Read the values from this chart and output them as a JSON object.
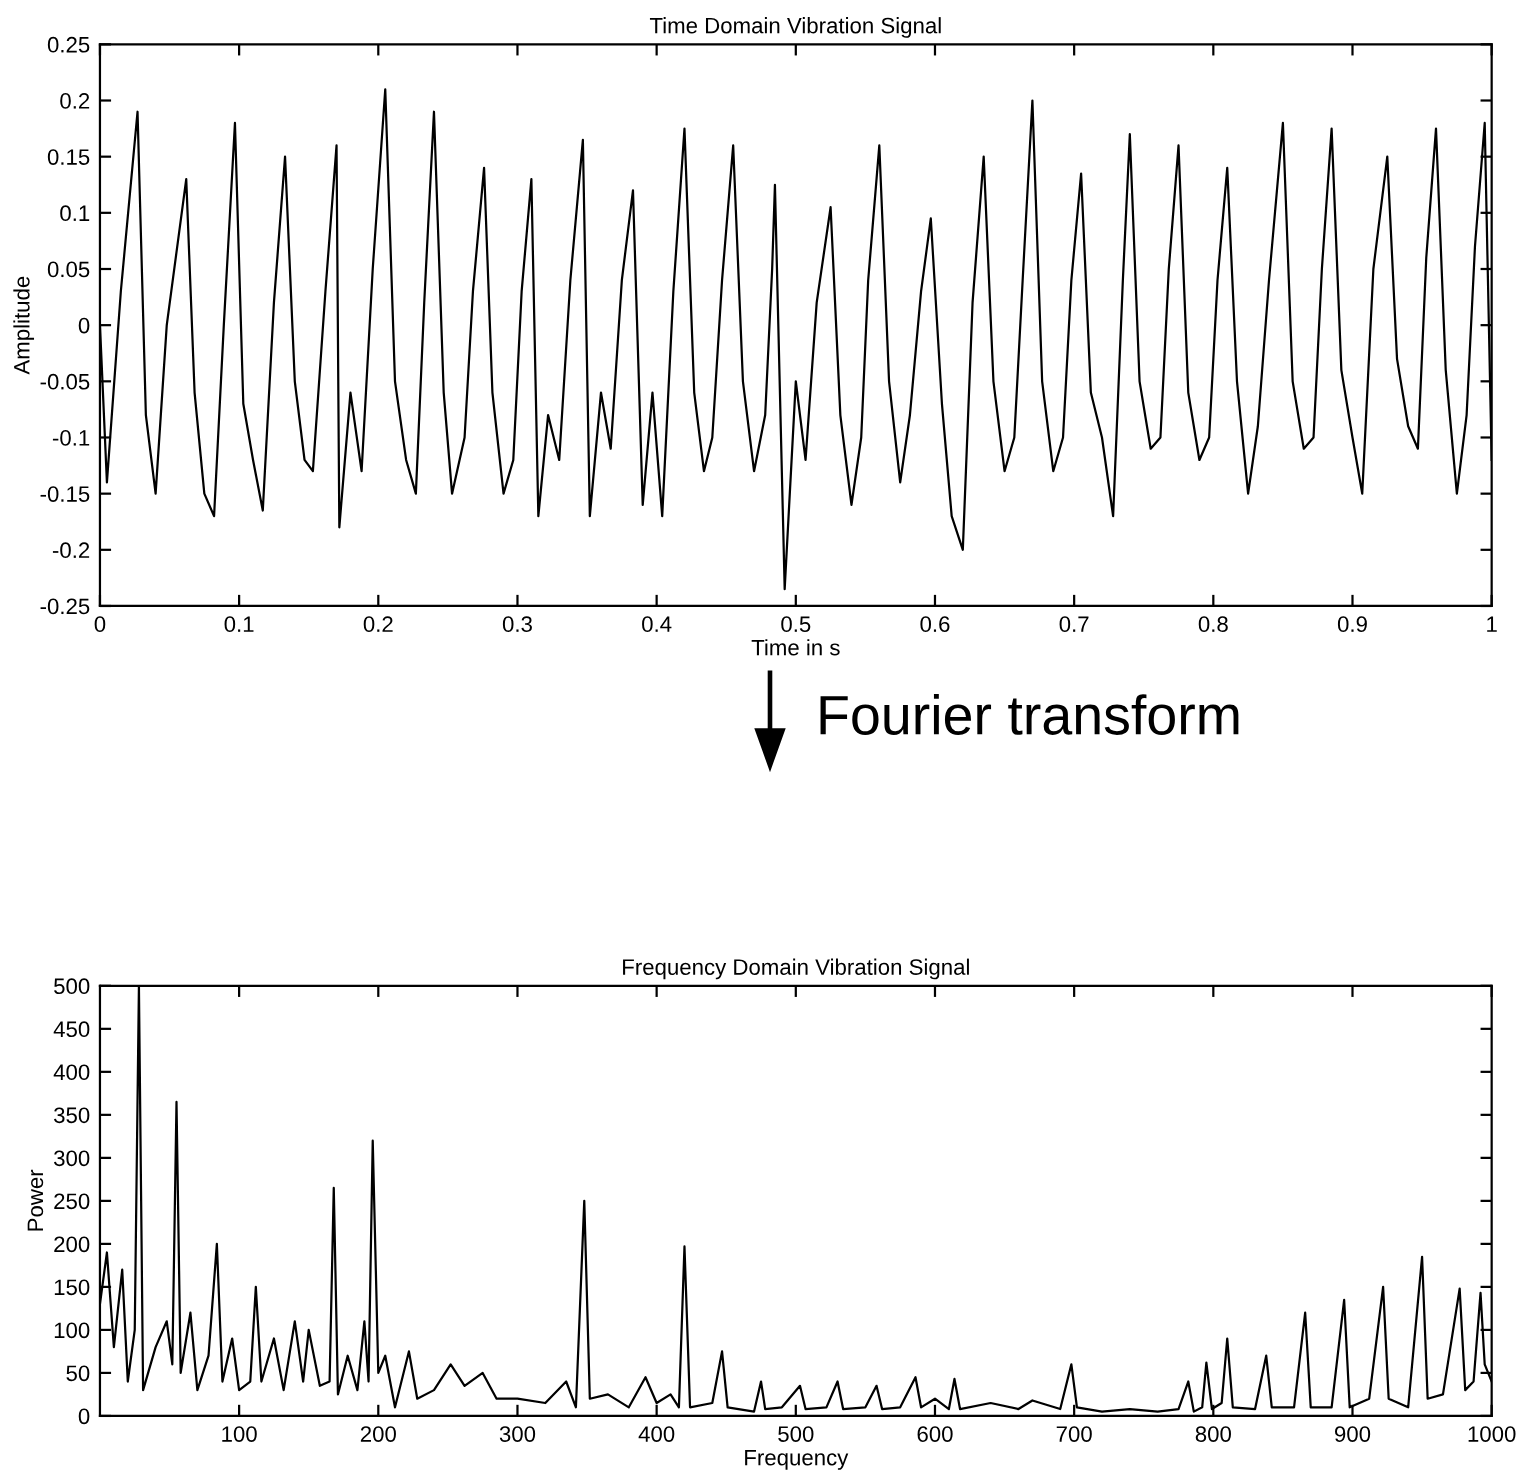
{
  "chart_data": [
    {
      "type": "line",
      "title": "Time Domain Vibration Signal",
      "xlabel": "Time in s",
      "ylabel": "Amplitude",
      "xlim": [
        0,
        1
      ],
      "ylim": [
        -0.25,
        0.25
      ],
      "xticks": [
        0,
        0.1,
        0.2,
        0.3,
        0.4,
        0.5,
        0.6,
        0.7,
        0.8,
        0.9,
        1
      ],
      "yticks": [
        -0.25,
        -0.2,
        -0.15,
        -0.1,
        -0.05,
        0,
        0.05,
        0.1,
        0.15,
        0.2,
        0.25
      ],
      "annotations": [
        "Fourier transform"
      ],
      "series": [
        {
          "color": "#000000",
          "x": [
            0,
            0.005,
            0.015,
            0.027,
            0.033,
            0.04,
            0.048,
            0.062,
            0.068,
            0.075,
            0.082,
            0.089,
            0.097,
            0.103,
            0.11,
            0.117,
            0.125,
            0.133,
            0.14,
            0.147,
            0.153,
            0.162,
            0.17,
            0.172,
            0.18,
            0.188,
            0.196,
            0.205,
            0.212,
            0.22,
            0.227,
            0.233,
            0.24,
            0.247,
            0.253,
            0.262,
            0.268,
            0.276,
            0.282,
            0.29,
            0.297,
            0.303,
            0.31,
            0.315,
            0.322,
            0.33,
            0.338,
            0.347,
            0.352,
            0.36,
            0.367,
            0.375,
            0.383,
            0.39,
            0.397,
            0.404,
            0.412,
            0.42,
            0.427,
            0.434,
            0.44,
            0.447,
            0.455,
            0.462,
            0.47,
            0.478,
            0.483,
            0.485,
            0.492,
            0.5,
            0.507,
            0.515,
            0.525,
            0.532,
            0.54,
            0.547,
            0.552,
            0.56,
            0.567,
            0.575,
            0.582,
            0.59,
            0.597,
            0.605,
            0.612,
            0.62,
            0.627,
            0.635,
            0.642,
            0.65,
            0.657,
            0.663,
            0.67,
            0.677,
            0.685,
            0.692,
            0.698,
            0.705,
            0.712,
            0.72,
            0.728,
            0.735,
            0.74,
            0.747,
            0.755,
            0.762,
            0.768,
            0.775,
            0.782,
            0.79,
            0.797,
            0.803,
            0.81,
            0.817,
            0.825,
            0.832,
            0.84,
            0.85,
            0.857,
            0.865,
            0.872,
            0.878,
            0.885,
            0.892,
            0.9,
            0.907,
            0.915,
            0.925,
            0.932,
            0.94,
            0.947,
            0.953,
            0.96,
            0.967,
            0.975,
            0.982,
            0.988,
            0.995,
            1.0
          ],
          "values": [
            0.0,
            -0.14,
            0.03,
            0.19,
            -0.08,
            -0.15,
            0.0,
            0.13,
            -0.06,
            -0.15,
            -0.17,
            0.0,
            0.18,
            -0.07,
            -0.12,
            -0.165,
            0.02,
            0.15,
            -0.05,
            -0.12,
            -0.13,
            0.03,
            0.16,
            -0.18,
            -0.06,
            -0.13,
            0.05,
            0.21,
            -0.05,
            -0.12,
            -0.15,
            0.02,
            0.19,
            -0.06,
            -0.15,
            -0.1,
            0.03,
            0.14,
            -0.06,
            -0.15,
            -0.12,
            0.03,
            0.13,
            -0.17,
            -0.08,
            -0.12,
            0.04,
            0.165,
            -0.17,
            -0.06,
            -0.11,
            0.04,
            0.12,
            -0.16,
            -0.06,
            -0.17,
            0.03,
            0.175,
            -0.06,
            -0.13,
            -0.1,
            0.04,
            0.16,
            -0.05,
            -0.13,
            -0.08,
            0.05,
            0.125,
            -0.235,
            -0.05,
            -0.12,
            0.02,
            0.105,
            -0.08,
            -0.16,
            -0.1,
            0.04,
            0.16,
            -0.05,
            -0.14,
            -0.08,
            0.03,
            0.095,
            -0.07,
            -0.17,
            -0.2,
            0.02,
            0.15,
            -0.05,
            -0.13,
            -0.1,
            0.04,
            0.2,
            -0.05,
            -0.13,
            -0.1,
            0.04,
            0.135,
            -0.06,
            -0.1,
            -0.17,
            0.04,
            0.17,
            -0.05,
            -0.11,
            -0.1,
            0.05,
            0.16,
            -0.06,
            -0.12,
            -0.1,
            0.04,
            0.14,
            -0.05,
            -0.15,
            -0.09,
            0.04,
            0.18,
            -0.05,
            -0.11,
            -0.1,
            0.05,
            0.175,
            -0.04,
            -0.1,
            -0.15,
            0.05,
            0.15,
            -0.03,
            -0.09,
            -0.11,
            0.06,
            0.175,
            -0.04,
            -0.15,
            -0.08,
            0.07,
            0.18,
            -0.12
          ]
        }
      ]
    },
    {
      "type": "line",
      "title": "Frequency Domain Vibration Signal",
      "xlabel": "Frequency",
      "ylabel": "Power",
      "xlim": [
        0,
        1000
      ],
      "ylim": [
        0,
        500
      ],
      "xticks": [
        100,
        200,
        300,
        400,
        500,
        600,
        700,
        800,
        900,
        1000
      ],
      "yticks": [
        0,
        50,
        100,
        150,
        200,
        250,
        300,
        350,
        400,
        450,
        500
      ],
      "series": [
        {
          "color": "#000000",
          "x": [
            0,
            5,
            10,
            16,
            20,
            25,
            28,
            31,
            40,
            48,
            52,
            55,
            58,
            65,
            70,
            78,
            84,
            88,
            95,
            100,
            108,
            112,
            116,
            125,
            132,
            140,
            146,
            150,
            158,
            165,
            168,
            171,
            178,
            185,
            190,
            193,
            196,
            200,
            205,
            212,
            222,
            228,
            240,
            252,
            262,
            275,
            285,
            300,
            320,
            335,
            342,
            348,
            352,
            365,
            380,
            392,
            400,
            410,
            416,
            420,
            424,
            440,
            447,
            451,
            470,
            475,
            478,
            490,
            503,
            507,
            522,
            530,
            534,
            550,
            558,
            562,
            575,
            586,
            590,
            600,
            610,
            614,
            618,
            640,
            660,
            670,
            690,
            698,
            702,
            720,
            740,
            760,
            775,
            782,
            786,
            792,
            795,
            799,
            806,
            810,
            814,
            830,
            838,
            842,
            858,
            866,
            870,
            885,
            894,
            898,
            912,
            922,
            926,
            940,
            950,
            954,
            965,
            977,
            981,
            987,
            992,
            995,
            1000
          ],
          "values": [
            130,
            190,
            80,
            170,
            40,
            100,
            500,
            30,
            80,
            110,
            60,
            365,
            50,
            120,
            30,
            70,
            200,
            40,
            90,
            30,
            40,
            150,
            40,
            90,
            30,
            110,
            40,
            100,
            35,
            40,
            265,
            25,
            70,
            30,
            110,
            40,
            320,
            50,
            70,
            10,
            75,
            20,
            30,
            60,
            35,
            50,
            20,
            20,
            15,
            40,
            10,
            250,
            20,
            25,
            10,
            45,
            15,
            25,
            10,
            197,
            10,
            15,
            75,
            10,
            5,
            40,
            8,
            10,
            35,
            8,
            10,
            40,
            8,
            10,
            35,
            8,
            10,
            45,
            10,
            20,
            8,
            43,
            8,
            15,
            8,
            18,
            8,
            60,
            10,
            5,
            8,
            5,
            8,
            40,
            5,
            10,
            62,
            8,
            15,
            90,
            10,
            8,
            70,
            10,
            10,
            120,
            10,
            10,
            135,
            10,
            20,
            150,
            20,
            10,
            185,
            20,
            25,
            148,
            30,
            40,
            143,
            60,
            40
          ]
        }
      ]
    }
  ]
}
